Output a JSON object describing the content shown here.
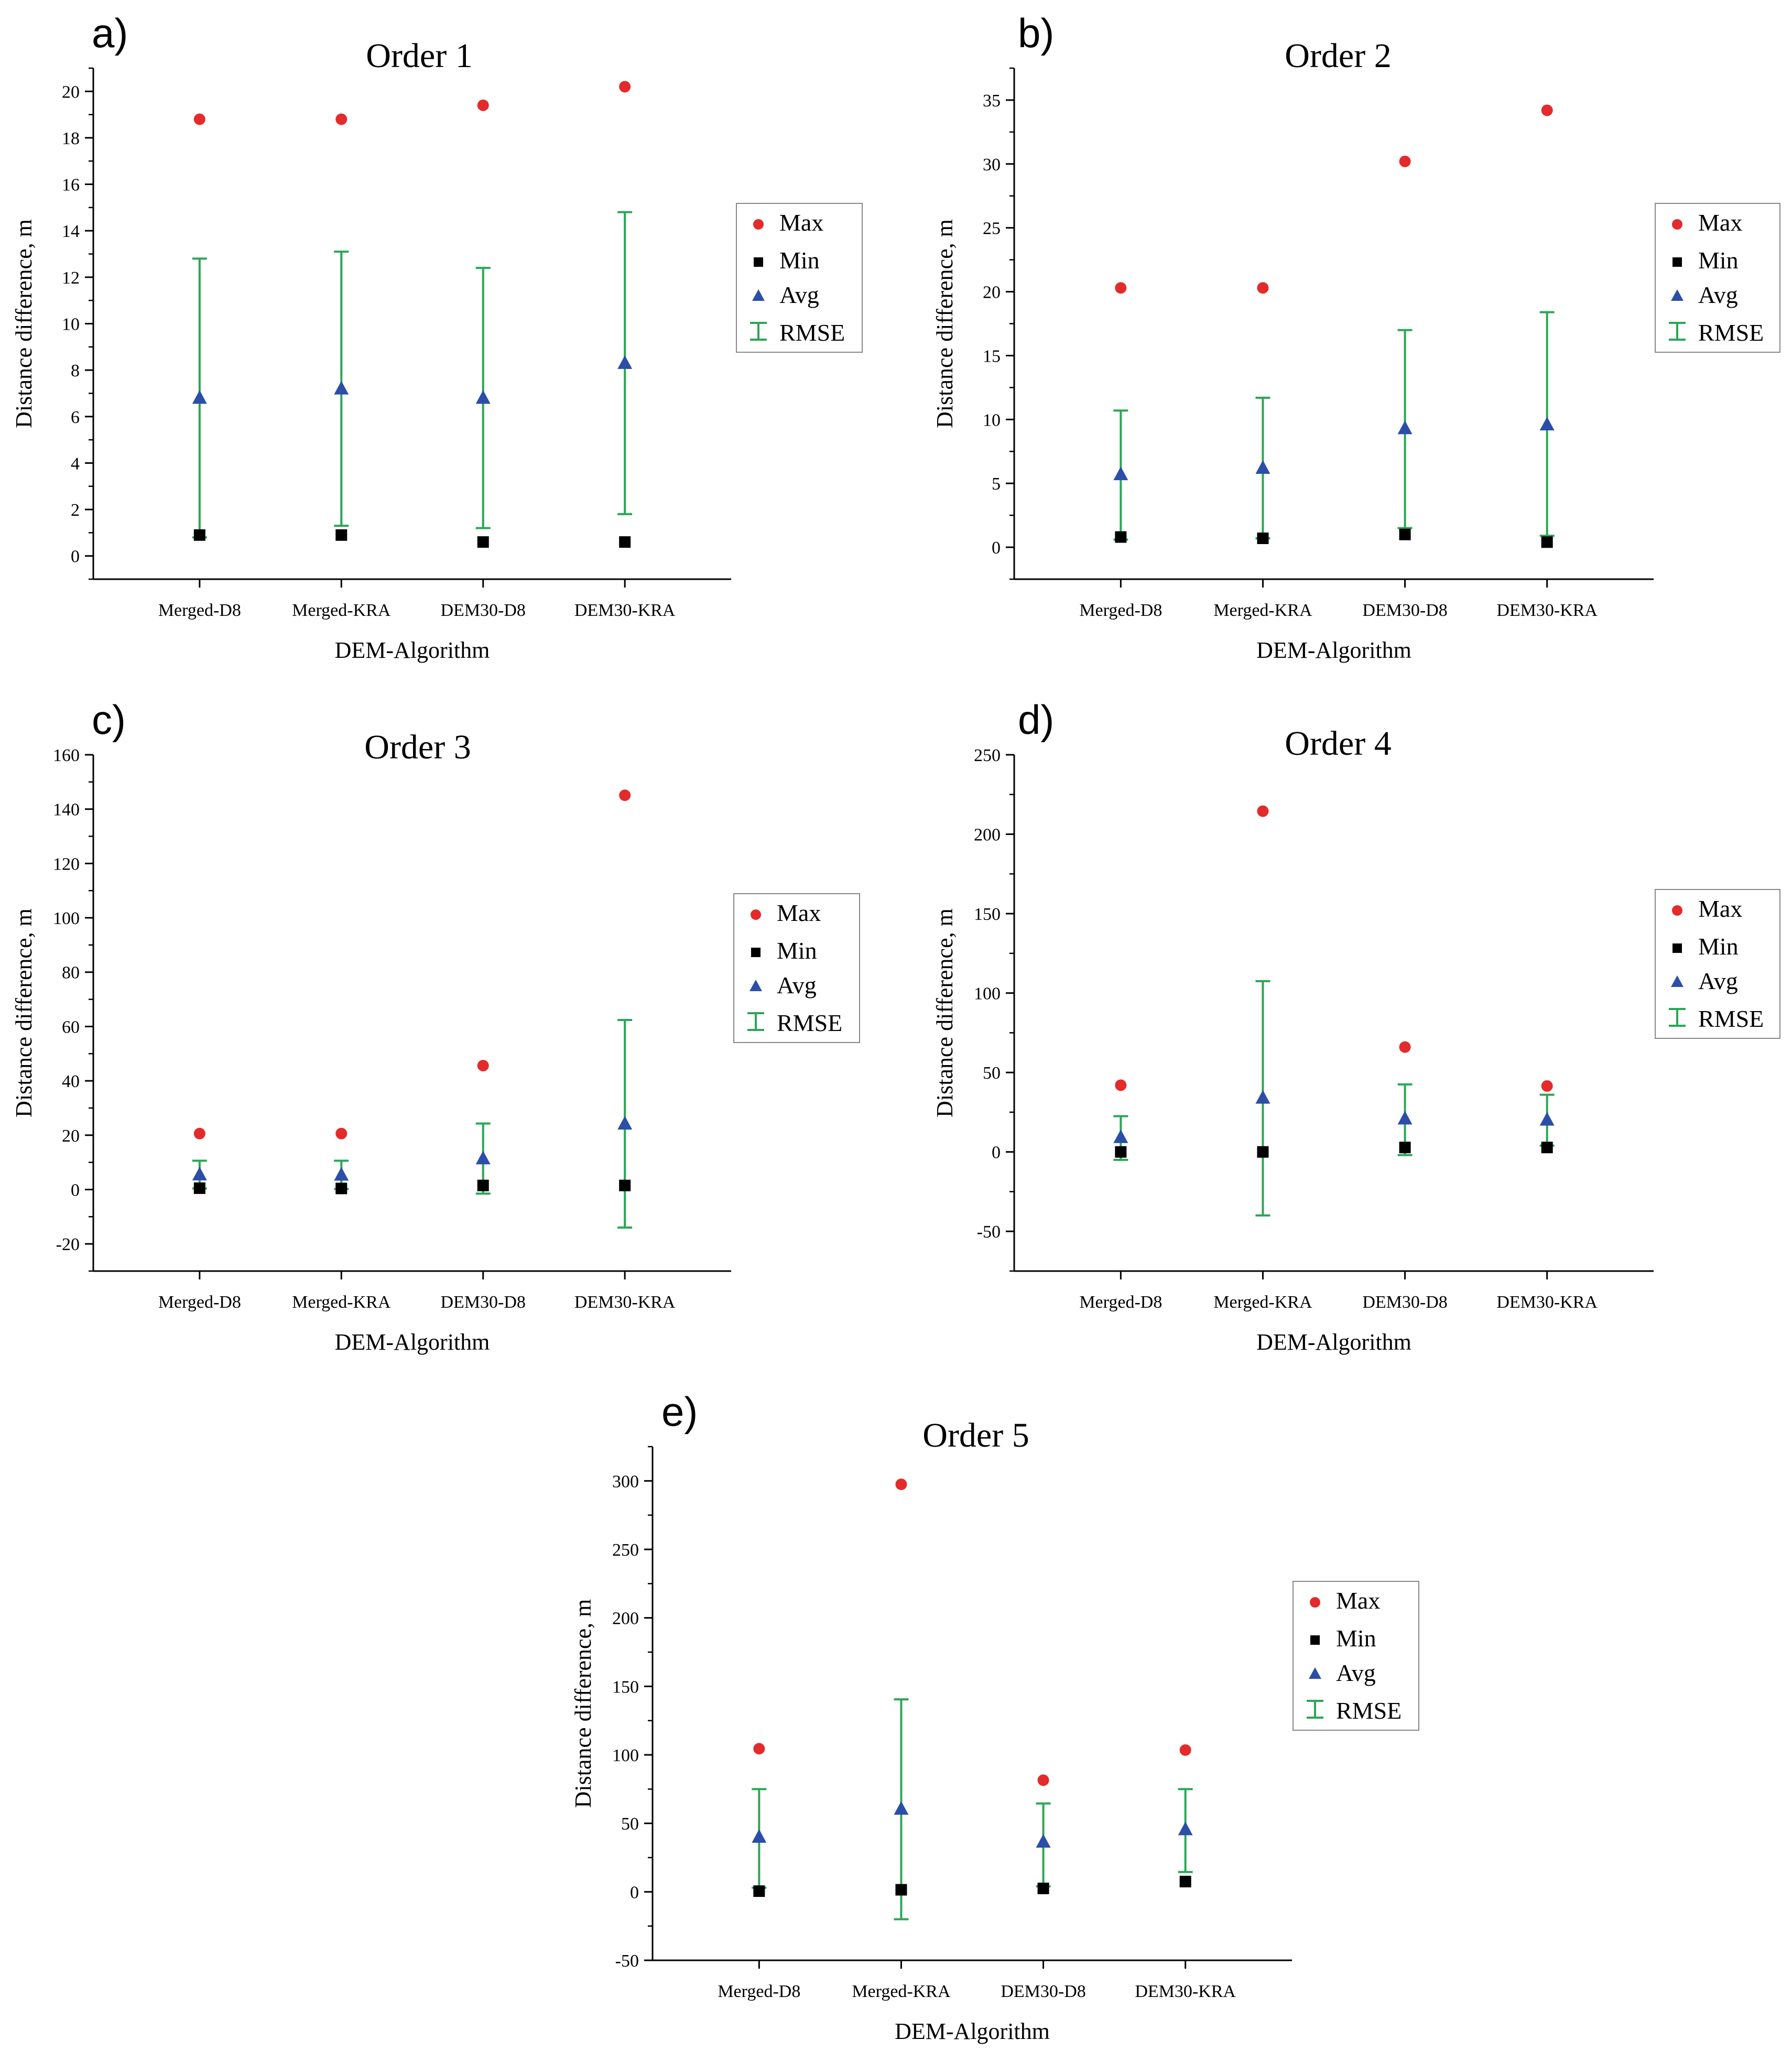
{
  "colors": {
    "max": "#e32b2b",
    "min": "#000000",
    "avg": "#2b4ea8",
    "rmse": "#2aa655"
  },
  "legend": {
    "labels": [
      "Max",
      "Min",
      "Avg",
      "RMSE"
    ],
    "placement": "right"
  },
  "chart_data": [
    {
      "panel": "a)",
      "type": "scatter",
      "title": "Order 1",
      "xlabel": "DEM-Algorithm",
      "ylabel": "Distance difference, m",
      "categories": [
        "Merged-D8",
        "Merged-KRA",
        "DEM30-D8",
        "DEM30-KRA"
      ],
      "ylim": [
        -1,
        21
      ],
      "yticks": [
        0,
        2,
        4,
        6,
        8,
        10,
        12,
        14,
        16,
        18,
        20
      ],
      "max": [
        18.8,
        18.8,
        19.4,
        20.2
      ],
      "min": [
        0.9,
        0.9,
        0.6,
        0.6
      ],
      "avg": [
        6.8,
        7.2,
        6.8,
        8.3
      ],
      "rmse": [
        [
          0.8,
          12.8
        ],
        [
          1.3,
          13.1
        ],
        [
          1.2,
          12.4
        ],
        [
          1.8,
          14.8
        ]
      ]
    },
    {
      "panel": "b)",
      "type": "scatter",
      "title": "Order 2",
      "xlabel": "DEM-Algorithm",
      "ylabel": "Distance difference, m",
      "categories": [
        "Merged-D8",
        "Merged-KRA",
        "DEM30-D8",
        "DEM30-KRA"
      ],
      "ylim": [
        -2.5,
        37.5
      ],
      "yticks": [
        0,
        5,
        10,
        15,
        20,
        25,
        30,
        35
      ],
      "max": [
        20.3,
        20.3,
        30.2,
        34.2
      ],
      "min": [
        0.8,
        0.7,
        1.0,
        0.4
      ],
      "avg": [
        5.7,
        6.2,
        9.3,
        9.6
      ],
      "rmse": [
        [
          0.6,
          10.7
        ],
        [
          0.7,
          11.7
        ],
        [
          1.5,
          17.0
        ],
        [
          0.9,
          18.4
        ]
      ]
    },
    {
      "panel": "c)",
      "type": "scatter",
      "title": "Order 3",
      "xlabel": "DEM-Algorithm",
      "ylabel": "Distance difference, m",
      "categories": [
        "Merged-D8",
        "Merged-KRA",
        "DEM30-D8",
        "DEM30-KRA"
      ],
      "ylim": [
        -30,
        160
      ],
      "yticks": [
        -20,
        0,
        20,
        40,
        60,
        80,
        100,
        120,
        140,
        160
      ],
      "max": [
        20.6,
        20.6,
        45.6,
        145.1
      ],
      "min": [
        0.5,
        0.4,
        1.5,
        1.5
      ],
      "avg": [
        5.5,
        5.4,
        11.4,
        24.2
      ],
      "rmse": [
        [
          0.4,
          10.6
        ],
        [
          0.2,
          10.6
        ],
        [
          -1.5,
          24.3
        ],
        [
          -14.0,
          62.4
        ]
      ]
    },
    {
      "panel": "d)",
      "type": "scatter",
      "title": "Order 4",
      "xlabel": "DEM-Algorithm",
      "ylabel": "Distance difference, m",
      "categories": [
        "Merged-D8",
        "Merged-KRA",
        "DEM30-D8",
        "DEM30-KRA"
      ],
      "ylim": [
        -75,
        250
      ],
      "yticks": [
        -50,
        0,
        50,
        100,
        150,
        200,
        250
      ],
      "max": [
        42.0,
        214.5,
        66.0,
        41.5
      ],
      "min": [
        0.0,
        0.0,
        2.8,
        2.8
      ],
      "avg": [
        9.2,
        34.0,
        20.9,
        20.2
      ],
      "rmse": [
        [
          -5.0,
          22.5
        ],
        [
          -40.0,
          107.5
        ],
        [
          -2.0,
          42.5
        ],
        [
          4.0,
          36.0
        ]
      ]
    },
    {
      "panel": "e)",
      "type": "scatter",
      "title": "Order 5",
      "xlabel": "DEM-Algorithm",
      "ylabel": "Distance difference, m",
      "categories": [
        "Merged-D8",
        "Merged-KRA",
        "DEM30-D8",
        "DEM30-KRA"
      ],
      "ylim": [
        -50,
        325
      ],
      "yticks": [
        -50,
        0,
        50,
        100,
        150,
        200,
        250,
        300
      ],
      "max": [
        104.5,
        297.5,
        81.5,
        103.5
      ],
      "min": [
        0.5,
        1.5,
        2.5,
        7.5
      ],
      "avg": [
        40.0,
        60.5,
        36.5,
        45.5
      ],
      "rmse": [
        [
          3.0,
          75.0
        ],
        [
          -20.0,
          140.5
        ],
        [
          4.0,
          64.5
        ],
        [
          14.5,
          75.0
        ]
      ]
    }
  ]
}
